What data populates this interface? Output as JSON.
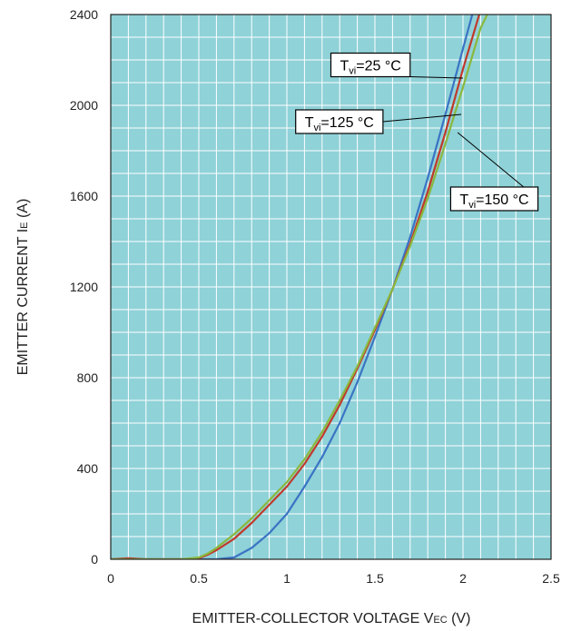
{
  "chart_data": {
    "type": "line",
    "xlabel": {
      "main": "EMITTER-COLLECTOR VOLTAGE V",
      "sub": "EC",
      "unit": " (V)"
    },
    "ylabel": {
      "main": "EMITTER CURRENT I",
      "sub": "E",
      "unit": " (A)"
    },
    "xlim": [
      0,
      2.5
    ],
    "ylim": [
      0,
      2400
    ],
    "x_ticks": [
      "0",
      "0.5",
      "1",
      "1.5",
      "2",
      "2.5"
    ],
    "y_ticks": [
      "0",
      "400",
      "800",
      "1200",
      "1600",
      "2000",
      "2400"
    ],
    "grid": true,
    "legend": "callouts",
    "colors": {
      "plot_bg": "#8fd2d8",
      "grid": "#ffffff",
      "frame": "#222222"
    },
    "series": [
      {
        "name": "Tvi=25 °C",
        "label": {
          "T": "T",
          "sub": "vi",
          "rest": "=25 °C"
        },
        "color": "#3a74c4",
        "points": [
          [
            0,
            0
          ],
          [
            0.6,
            0
          ],
          [
            0.7,
            8
          ],
          [
            0.8,
            50
          ],
          [
            0.9,
            115
          ],
          [
            1.0,
            200
          ],
          [
            1.1,
            320
          ],
          [
            1.2,
            450
          ],
          [
            1.3,
            600
          ],
          [
            1.4,
            780
          ],
          [
            1.5,
            980
          ],
          [
            1.6,
            1190
          ],
          [
            1.7,
            1420
          ],
          [
            1.8,
            1680
          ],
          [
            1.9,
            1960
          ],
          [
            2.0,
            2250
          ],
          [
            2.06,
            2420
          ]
        ]
      },
      {
        "name": "Tvi=125 °C",
        "label": {
          "T": "T",
          "sub": "vi",
          "rest": "=125 °C"
        },
        "color": "#c0392b",
        "points": [
          [
            0,
            0
          ],
          [
            0.1,
            5
          ],
          [
            0.2,
            0
          ],
          [
            0.4,
            0
          ],
          [
            0.5,
            5
          ],
          [
            0.55,
            20
          ],
          [
            0.6,
            40
          ],
          [
            0.7,
            90
          ],
          [
            0.8,
            160
          ],
          [
            0.9,
            240
          ],
          [
            1.0,
            320
          ],
          [
            1.1,
            420
          ],
          [
            1.2,
            540
          ],
          [
            1.3,
            680
          ],
          [
            1.4,
            840
          ],
          [
            1.5,
            1010
          ],
          [
            1.6,
            1190
          ],
          [
            1.7,
            1390
          ],
          [
            1.8,
            1620
          ],
          [
            1.9,
            1880
          ],
          [
            2.0,
            2160
          ],
          [
            2.1,
            2420
          ]
        ]
      },
      {
        "name": "Tvi=150 °C",
        "label": {
          "T": "T",
          "sub": "vi",
          "rest": "=150 °C"
        },
        "color": "#8ab83e",
        "points": [
          [
            0,
            0
          ],
          [
            0.4,
            0
          ],
          [
            0.5,
            8
          ],
          [
            0.55,
            25
          ],
          [
            0.6,
            50
          ],
          [
            0.7,
            110
          ],
          [
            0.8,
            180
          ],
          [
            0.9,
            260
          ],
          [
            1.0,
            340
          ],
          [
            1.1,
            440
          ],
          [
            1.2,
            560
          ],
          [
            1.3,
            700
          ],
          [
            1.4,
            850
          ],
          [
            1.5,
            1020
          ],
          [
            1.6,
            1190
          ],
          [
            1.7,
            1380
          ],
          [
            1.8,
            1590
          ],
          [
            1.9,
            1830
          ],
          [
            2.0,
            2080
          ],
          [
            2.1,
            2340
          ],
          [
            2.15,
            2420
          ]
        ]
      }
    ],
    "callouts": [
      {
        "series": 0,
        "box_at": [
          1.25,
          2230
        ],
        "anchor": [
          2.0,
          2120
        ]
      },
      {
        "series": 1,
        "box_at": [
          1.05,
          1980
        ],
        "anchor": [
          1.99,
          1960
        ]
      },
      {
        "series": 2,
        "box_at": [
          1.93,
          1640
        ],
        "anchor": [
          1.97,
          1880
        ]
      }
    ]
  }
}
